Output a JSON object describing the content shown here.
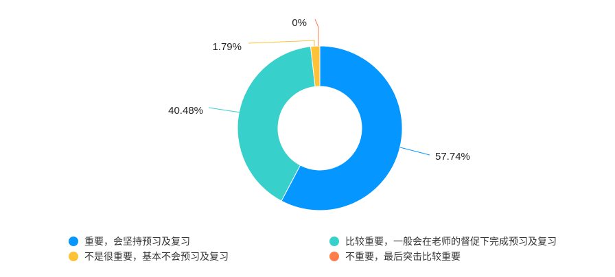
{
  "chart_data": {
    "type": "pie",
    "variant": "donut",
    "categories": [
      "重要，会坚持预习及复习",
      "比较重要，一般会在老师的督促下完成预习及复习",
      "不是很重要，基本不会预习及复习",
      "不重要，最后突击比较重要"
    ],
    "values": [
      57.74,
      40.48,
      1.79,
      0
    ],
    "labels": [
      "57.74%",
      "40.48%",
      "1.79%",
      "0%"
    ],
    "colors": [
      "#0597ff",
      "#38d0cb",
      "#fdc238",
      "#ff7d48"
    ],
    "legend_position": "bottom"
  }
}
